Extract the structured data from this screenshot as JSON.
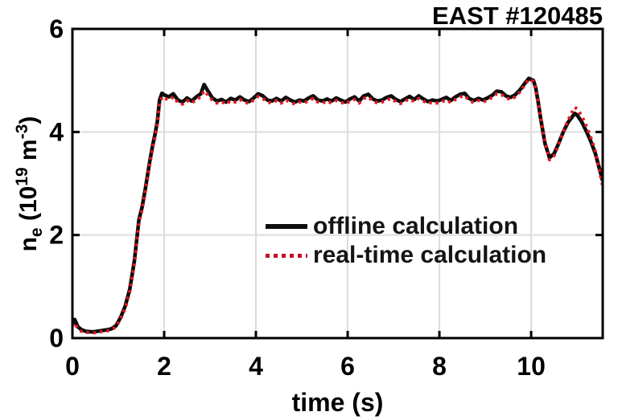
{
  "frame": {
    "title": "EAST #120485"
  },
  "colors": {
    "offline_series": "#0d0d0d",
    "realtime_series": "#e8161d",
    "legend_dot_red": "#c2122b",
    "gridline": "#dcdcdc",
    "axis": "#000000",
    "background": "#ffffff"
  },
  "legend": {
    "items": [
      {
        "label": "offline calculation",
        "marker": "black-solid-line"
      },
      {
        "label": "real-time calculation",
        "marker": "red-dotted-line"
      }
    ]
  },
  "ylabel_parts": {
    "base": "n",
    "sub": "e",
    "mid": " (10",
    "sup1": "19",
    "mid2": " m",
    "sup2": "-3",
    "end": ")"
  },
  "chart_data": {
    "type": "line",
    "title": "EAST #120485",
    "xlabel": "time (s)",
    "ylabel": "n_e (10^19 m^-3)",
    "xlim": [
      0,
      11.56
    ],
    "ylim": [
      0,
      6
    ],
    "xticks": [
      0,
      2,
      4,
      6,
      8,
      10
    ],
    "yticks": [
      0,
      2,
      4,
      6
    ],
    "grid": {
      "x": [
        2,
        4,
        6,
        8,
        10
      ],
      "y": [
        2,
        4
      ]
    },
    "grid_on": true,
    "legend_position": "inside-middle-right",
    "x": [
      0,
      0.05,
      0.12,
      0.2,
      0.3,
      0.45,
      0.6,
      0.75,
      0.85,
      0.95,
      1.05,
      1.15,
      1.25,
      1.35,
      1.45,
      1.52,
      1.6,
      1.68,
      1.75,
      1.8,
      1.85,
      1.9,
      1.95,
      2,
      2.1,
      2.2,
      2.3,
      2.4,
      2.5,
      2.6,
      2.7,
      2.8,
      2.87,
      2.95,
      3.05,
      3.15,
      3.25,
      3.35,
      3.45,
      3.55,
      3.65,
      3.75,
      3.85,
      3.95,
      4.05,
      4.15,
      4.25,
      4.35,
      4.45,
      4.55,
      4.65,
      4.75,
      4.85,
      4.95,
      5.05,
      5.15,
      5.25,
      5.35,
      5.45,
      5.55,
      5.65,
      5.75,
      5.85,
      5.95,
      6.05,
      6.15,
      6.25,
      6.35,
      6.45,
      6.55,
      6.65,
      6.75,
      6.85,
      6.95,
      7.05,
      7.15,
      7.25,
      7.35,
      7.45,
      7.55,
      7.65,
      7.75,
      7.85,
      7.95,
      8.05,
      8.15,
      8.25,
      8.35,
      8.45,
      8.55,
      8.65,
      8.75,
      8.85,
      8.95,
      9.05,
      9.15,
      9.25,
      9.35,
      9.45,
      9.55,
      9.65,
      9.75,
      9.85,
      9.95,
      10.05,
      10.1,
      10.15,
      10.2,
      10.3,
      10.4,
      10.5,
      10.6,
      10.7,
      10.8,
      10.9,
      10.95,
      11,
      11.1,
      11.2,
      11.3,
      11.4,
      11.5,
      11.56
    ],
    "series": [
      {
        "name": "offline calculation",
        "style": "solid",
        "color": "#0d0d0d",
        "values": [
          0.28,
          0.36,
          0.22,
          0.16,
          0.13,
          0.12,
          0.14,
          0.16,
          0.18,
          0.24,
          0.4,
          0.62,
          0.95,
          1.5,
          2.3,
          2.55,
          2.95,
          3.4,
          3.75,
          3.95,
          4.2,
          4.62,
          4.75,
          4.72,
          4.68,
          4.74,
          4.62,
          4.58,
          4.66,
          4.6,
          4.68,
          4.74,
          4.92,
          4.8,
          4.66,
          4.6,
          4.63,
          4.58,
          4.65,
          4.62,
          4.68,
          4.62,
          4.59,
          4.66,
          4.74,
          4.7,
          4.62,
          4.6,
          4.65,
          4.6,
          4.67,
          4.62,
          4.58,
          4.62,
          4.6,
          4.66,
          4.7,
          4.62,
          4.6,
          4.64,
          4.6,
          4.66,
          4.62,
          4.58,
          4.64,
          4.68,
          4.6,
          4.7,
          4.73,
          4.64,
          4.6,
          4.62,
          4.67,
          4.7,
          4.63,
          4.59,
          4.64,
          4.69,
          4.63,
          4.7,
          4.64,
          4.59,
          4.62,
          4.6,
          4.63,
          4.67,
          4.61,
          4.68,
          4.73,
          4.75,
          4.65,
          4.61,
          4.65,
          4.62,
          4.66,
          4.71,
          4.79,
          4.78,
          4.7,
          4.67,
          4.72,
          4.81,
          4.93,
          5.04,
          5.0,
          4.85,
          4.6,
          4.3,
          3.78,
          3.5,
          3.58,
          3.78,
          4.0,
          4.18,
          4.3,
          4.36,
          4.33,
          4.2,
          4.02,
          3.82,
          3.58,
          3.25,
          3.05
        ]
      },
      {
        "name": "real-time calculation",
        "style": "dotted",
        "color": "#e8161d",
        "values": [
          0.24,
          0.3,
          0.18,
          0.13,
          0.11,
          0.1,
          0.12,
          0.14,
          0.16,
          0.22,
          0.37,
          0.58,
          0.9,
          1.45,
          2.25,
          2.5,
          2.9,
          3.35,
          3.7,
          3.9,
          4.15,
          4.55,
          4.68,
          4.66,
          4.62,
          4.68,
          4.57,
          4.54,
          4.61,
          4.56,
          4.63,
          4.68,
          4.8,
          4.72,
          4.62,
          4.56,
          4.59,
          4.54,
          4.61,
          4.58,
          4.63,
          4.58,
          4.55,
          4.62,
          4.69,
          4.65,
          4.58,
          4.56,
          4.61,
          4.56,
          4.62,
          4.58,
          4.54,
          4.58,
          4.56,
          4.61,
          4.65,
          4.58,
          4.56,
          4.6,
          4.56,
          4.61,
          4.58,
          4.54,
          4.6,
          4.63,
          4.56,
          4.65,
          4.68,
          4.6,
          4.56,
          4.58,
          4.62,
          4.65,
          4.59,
          4.55,
          4.6,
          4.64,
          4.59,
          4.65,
          4.6,
          4.55,
          4.58,
          4.56,
          4.59,
          4.62,
          4.57,
          4.63,
          4.68,
          4.7,
          4.61,
          4.57,
          4.61,
          4.58,
          4.62,
          4.67,
          4.74,
          4.73,
          4.66,
          4.63,
          4.68,
          4.77,
          4.9,
          5.02,
          4.98,
          4.84,
          4.6,
          4.32,
          3.8,
          3.46,
          3.54,
          3.76,
          4.0,
          4.22,
          4.4,
          4.48,
          4.45,
          4.32,
          4.12,
          3.9,
          3.62,
          3.2,
          2.95
        ]
      }
    ]
  }
}
